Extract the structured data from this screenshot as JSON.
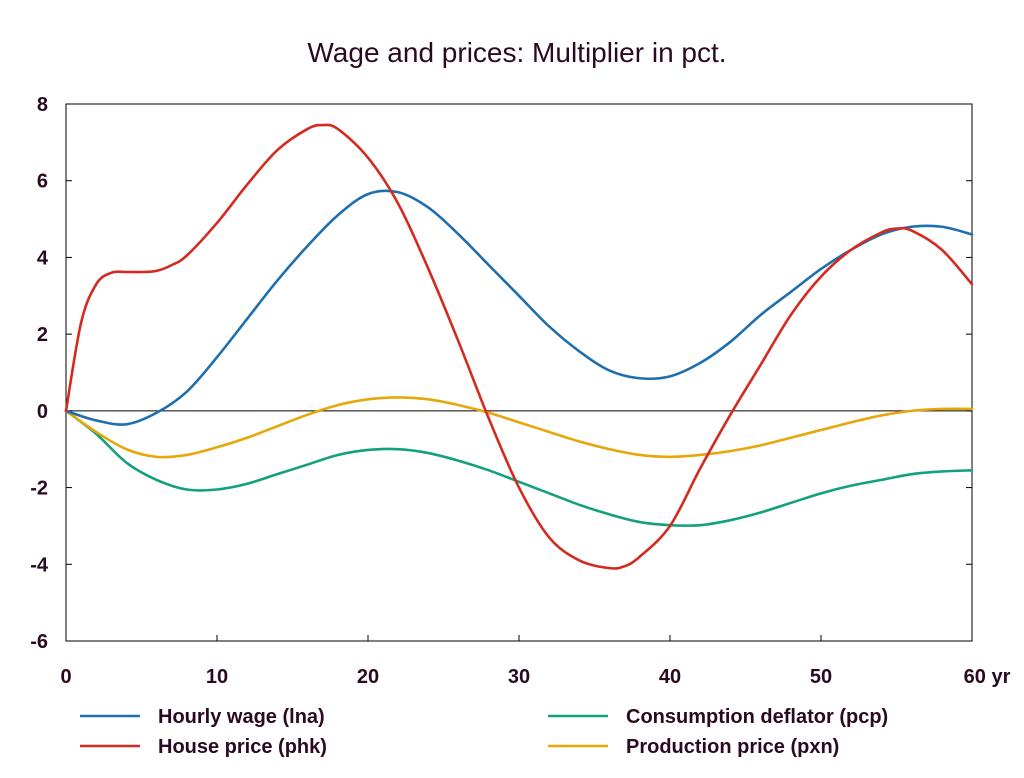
{
  "chart_data": {
    "type": "line",
    "title": "Wage and prices: Multiplier in pct.",
    "xlabel": "",
    "ylabel": "",
    "x_unit_label": "yr",
    "xlim": [
      0,
      60
    ],
    "ylim": [
      -6,
      8
    ],
    "x_ticks": [
      0,
      10,
      20,
      30,
      40,
      50,
      60
    ],
    "y_ticks": [
      -6,
      -4,
      -2,
      0,
      2,
      4,
      6,
      8
    ],
    "grid": false,
    "zero_line": true,
    "legend_position": "bottom",
    "series": [
      {
        "name": "Hourly wage (lna)",
        "color": "#1f6fae",
        "x": [
          0,
          2,
          4,
          6,
          8,
          10,
          12,
          14,
          16,
          18,
          20,
          22,
          24,
          26,
          28,
          30,
          32,
          34,
          36,
          38,
          40,
          42,
          44,
          46,
          48,
          50,
          52,
          54,
          56,
          58,
          60
        ],
        "values": [
          0,
          -0.25,
          -0.35,
          -0.05,
          0.5,
          1.4,
          2.4,
          3.4,
          4.3,
          5.1,
          5.65,
          5.7,
          5.3,
          4.6,
          3.8,
          3.0,
          2.2,
          1.55,
          1.05,
          0.85,
          0.9,
          1.25,
          1.8,
          2.5,
          3.1,
          3.7,
          4.2,
          4.6,
          4.8,
          4.8,
          4.6
        ]
      },
      {
        "name": "House price (phk)",
        "color": "#d42a20",
        "x": [
          0,
          1,
          2,
          3,
          4,
          5,
          6,
          7,
          8,
          10,
          12,
          14,
          16,
          17,
          18,
          20,
          22,
          24,
          26,
          28,
          30,
          32,
          34,
          36,
          37,
          38,
          40,
          42,
          44,
          46,
          48,
          50,
          52,
          54,
          55,
          56,
          58,
          60
        ],
        "values": [
          0,
          2.3,
          3.3,
          3.6,
          3.62,
          3.62,
          3.65,
          3.8,
          4.05,
          4.9,
          5.9,
          6.8,
          7.35,
          7.45,
          7.35,
          6.6,
          5.4,
          3.7,
          1.8,
          -0.2,
          -2.0,
          -3.3,
          -3.9,
          -4.1,
          -4.05,
          -3.8,
          -3.0,
          -1.5,
          -0.1,
          1.2,
          2.5,
          3.5,
          4.2,
          4.65,
          4.75,
          4.7,
          4.2,
          3.3
        ]
      },
      {
        "name": "Consumption deflator (pcp)",
        "color": "#13a07c",
        "x": [
          0,
          2,
          4,
          6,
          8,
          10,
          12,
          14,
          16,
          18,
          20,
          22,
          24,
          26,
          28,
          30,
          32,
          34,
          36,
          38,
          40,
          42,
          44,
          46,
          48,
          50,
          52,
          54,
          56,
          58,
          60
        ],
        "values": [
          0,
          -0.6,
          -1.35,
          -1.8,
          -2.05,
          -2.05,
          -1.9,
          -1.65,
          -1.4,
          -1.15,
          -1.02,
          -1.0,
          -1.1,
          -1.3,
          -1.55,
          -1.85,
          -2.15,
          -2.45,
          -2.7,
          -2.9,
          -2.98,
          -2.98,
          -2.85,
          -2.65,
          -2.4,
          -2.15,
          -1.95,
          -1.8,
          -1.65,
          -1.58,
          -1.55
        ]
      },
      {
        "name": "Production price (pxn)",
        "color": "#e5a70a",
        "x": [
          0,
          2,
          4,
          6,
          8,
          10,
          12,
          14,
          16,
          18,
          20,
          22,
          24,
          26,
          28,
          30,
          32,
          34,
          36,
          38,
          40,
          42,
          44,
          46,
          48,
          50,
          52,
          54,
          56,
          58,
          60
        ],
        "values": [
          0,
          -0.55,
          -1.0,
          -1.2,
          -1.15,
          -0.95,
          -0.7,
          -0.4,
          -0.1,
          0.15,
          0.3,
          0.35,
          0.3,
          0.15,
          -0.05,
          -0.3,
          -0.55,
          -0.8,
          -1.0,
          -1.15,
          -1.2,
          -1.15,
          -1.05,
          -0.9,
          -0.7,
          -0.5,
          -0.3,
          -0.12,
          0.0,
          0.05,
          0.05
        ]
      }
    ]
  }
}
